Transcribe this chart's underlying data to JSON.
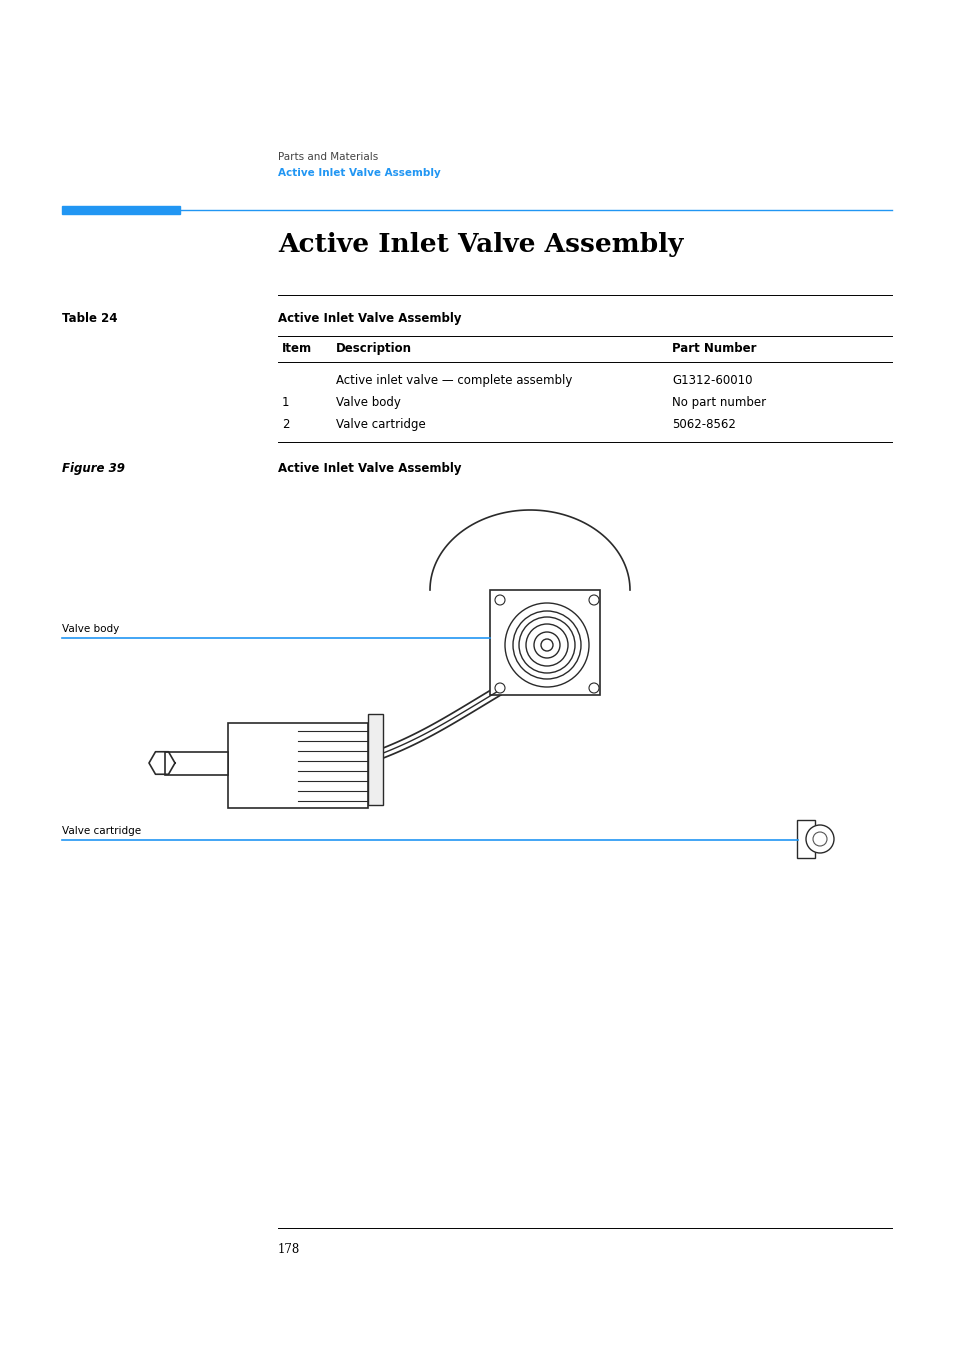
{
  "bg_color": "#ffffff",
  "page_number": "178",
  "breadcrumb_line1": "Parts and Materials",
  "breadcrumb_line2": "Active Inlet Valve Assembly",
  "breadcrumb_color": "#2196F3",
  "section_title": "Active Inlet Valve Assembly",
  "table_label": "Table 24",
  "table_title": "Active Inlet Valve Assembly",
  "table_headers": [
    "Item",
    "Description",
    "Part Number"
  ],
  "table_rows": [
    [
      "",
      "Active inlet valve — complete assembly",
      "G1312-60010"
    ],
    [
      "1",
      "Valve body",
      "No part number"
    ],
    [
      "2",
      "Valve cartridge",
      "5062-8562"
    ]
  ],
  "figure_label": "Figure 39",
  "figure_title": "Active Inlet Valve Assembly",
  "label_valve_body": "Valve body",
  "label_valve_cartridge": "Valve cartridge",
  "accent_color": "#2196F3",
  "accent_bar_color": "#2196F3"
}
